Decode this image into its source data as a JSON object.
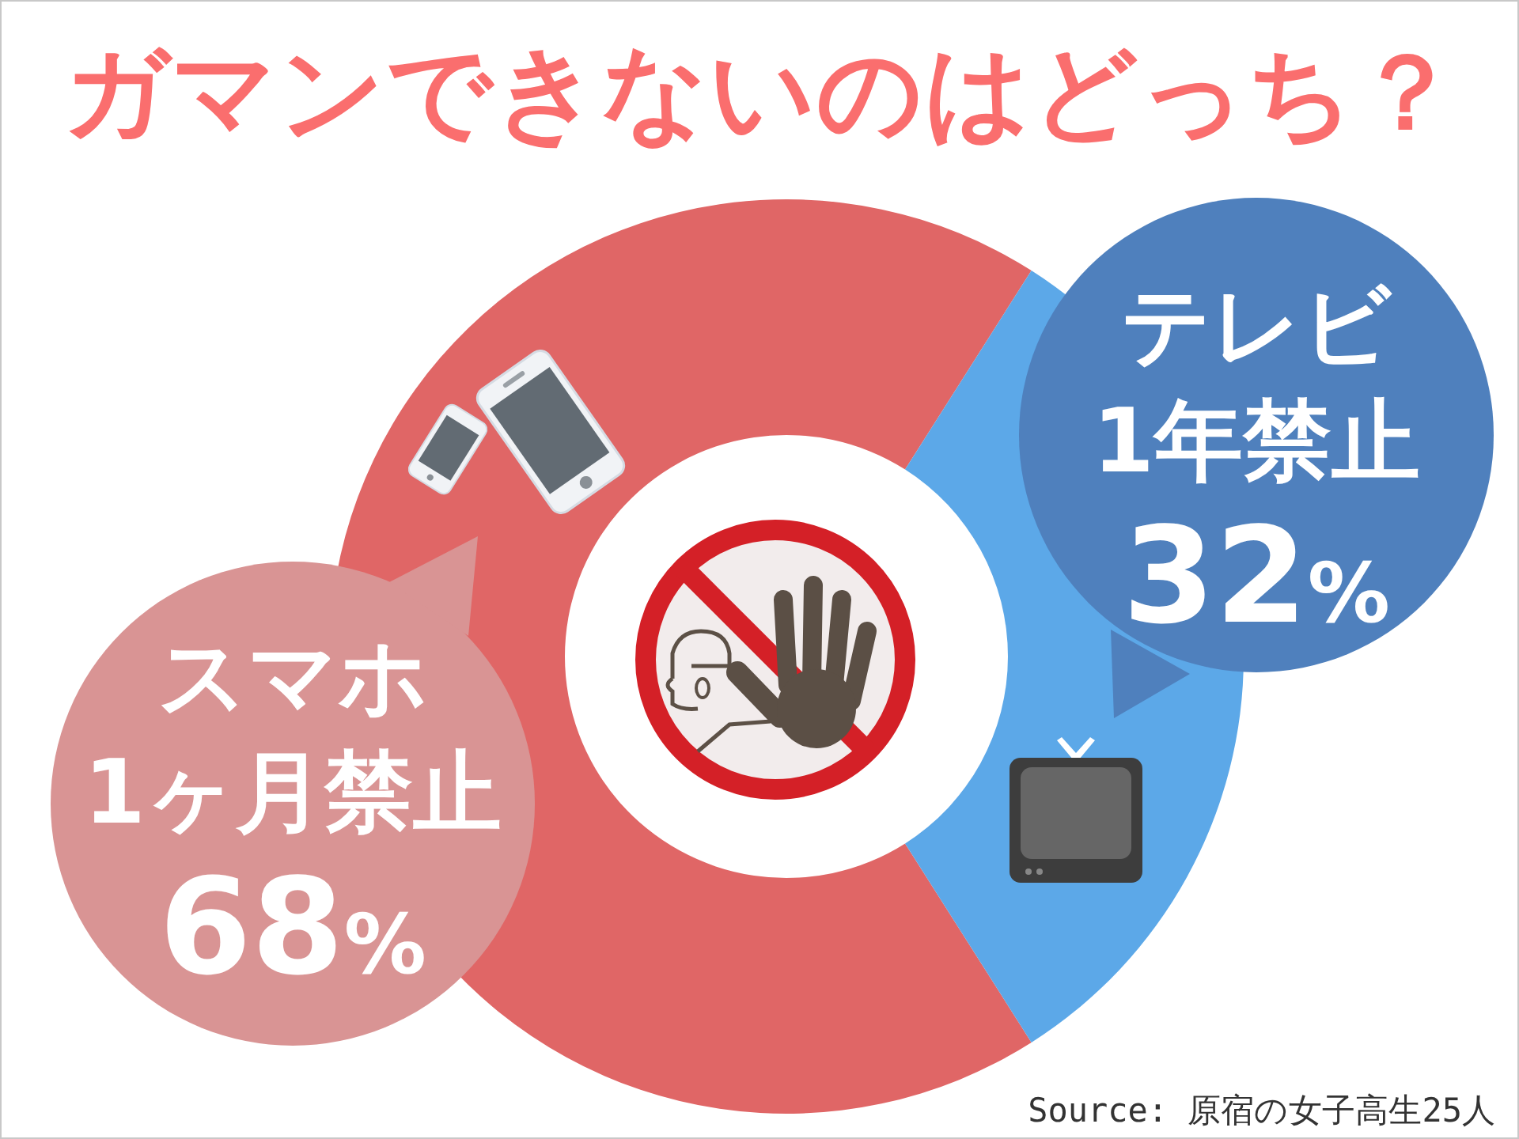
{
  "chart_data": {
    "type": "donut",
    "title": "ガマンできないのはどっち？",
    "categories": [
      "スマホ\n1ヶ月禁止",
      "テレビ\n1年禁止"
    ],
    "values": [
      68,
      32
    ],
    "colors": [
      "#e06666",
      "#5ca8e8"
    ],
    "value_labels": [
      "68%",
      "32%"
    ],
    "annotations": [
      "Source: 原宿の女子高生25人"
    ]
  }
}
